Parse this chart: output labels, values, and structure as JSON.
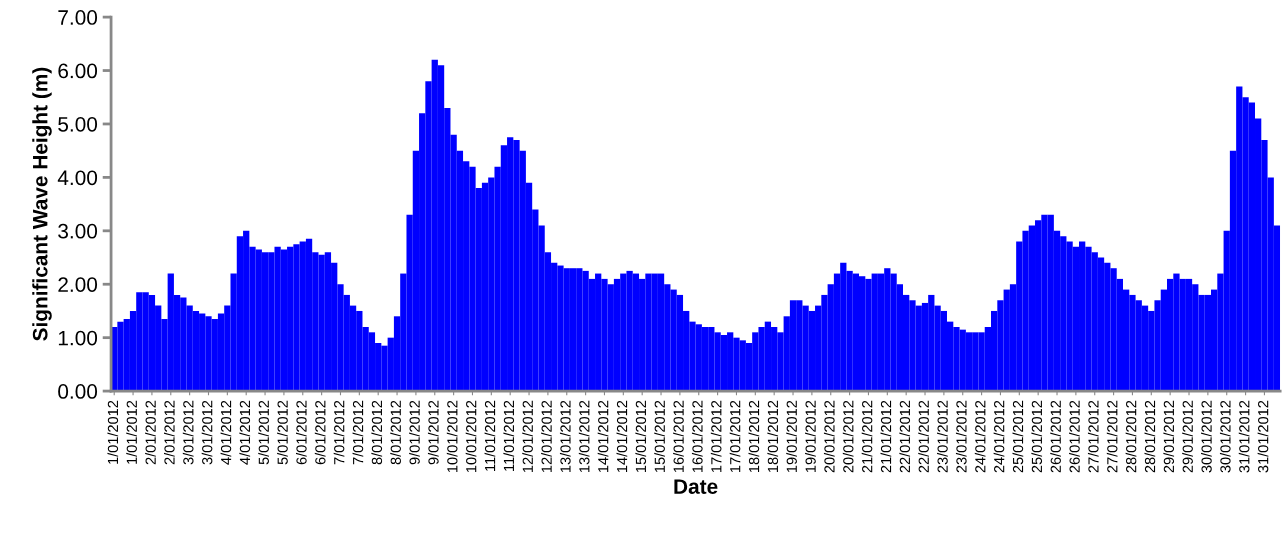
{
  "chart_data": {
    "type": "bar",
    "xlabel": "Date",
    "ylabel": "Significant Wave Height (m)",
    "categories": [
      "1/01/2012",
      null,
      null,
      "1/01/2012",
      null,
      null,
      "2/01/2012",
      null,
      null,
      "2/01/2012",
      null,
      null,
      "3/01/2012",
      null,
      null,
      "3/01/2012",
      null,
      null,
      "4/01/2012",
      null,
      null,
      "4/01/2012",
      null,
      null,
      "5/01/2012",
      null,
      null,
      "5/01/2012",
      null,
      null,
      "6/01/2012",
      null,
      null,
      "6/01/2012",
      null,
      null,
      "7/01/2012",
      null,
      null,
      "7/01/2012",
      null,
      null,
      "8/01/2012",
      null,
      null,
      "8/01/2012",
      null,
      null,
      "9/01/2012",
      null,
      null,
      "9/01/2012",
      null,
      null,
      "10/01/2012",
      null,
      null,
      "10/01/2012",
      null,
      null,
      "11/01/2012",
      null,
      null,
      "11/01/2012",
      null,
      null,
      "12/01/2012",
      null,
      null,
      "12/01/2012",
      null,
      null,
      "13/01/2012",
      null,
      null,
      "13/01/2012",
      null,
      null,
      "14/01/2012",
      null,
      null,
      "14/01/2012",
      null,
      null,
      "15/01/2012",
      null,
      null,
      "15/01/2012",
      null,
      null,
      "16/01/2012",
      null,
      null,
      "16/01/2012",
      null,
      null,
      "17/01/2012",
      null,
      null,
      "17/01/2012",
      null,
      null,
      "18/01/2012",
      null,
      null,
      "18/01/2012",
      null,
      null,
      "19/01/2012",
      null,
      null,
      "19/01/2012",
      null,
      null,
      "20/01/2012",
      null,
      null,
      "20/01/2012",
      null,
      null,
      "21/01/2012",
      null,
      null,
      "21/01/2012",
      null,
      null,
      "22/01/2012",
      null,
      null,
      "22/01/2012",
      null,
      null,
      "23/01/2012",
      null,
      null,
      "23/01/2012",
      null,
      null,
      "24/01/2012",
      null,
      null,
      "24/01/2012",
      null,
      null,
      "25/01/2012",
      null,
      null,
      "25/01/2012",
      null,
      null,
      "26/01/2012",
      null,
      null,
      "26/01/2012",
      null,
      null,
      "27/01/2012",
      null,
      null,
      "27/01/2012",
      null,
      null,
      "28/01/2012",
      null,
      null,
      "28/01/2012",
      null,
      null,
      "29/01/2012",
      null,
      null,
      "29/01/2012",
      null,
      null,
      "30/01/2012",
      null,
      null,
      "30/01/2012",
      null,
      null,
      "31/01/2012",
      null,
      null,
      "31/01/2012",
      null,
      null
    ],
    "values": [
      1.2,
      1.3,
      1.35,
      1.5,
      1.85,
      1.85,
      1.8,
      1.6,
      1.35,
      2.2,
      1.8,
      1.75,
      1.6,
      1.5,
      1.45,
      1.4,
      1.35,
      1.45,
      1.6,
      2.2,
      2.9,
      3.0,
      2.7,
      2.65,
      2.6,
      2.6,
      2.7,
      2.65,
      2.7,
      2.75,
      2.8,
      2.85,
      2.6,
      2.55,
      2.6,
      2.4,
      2.0,
      1.8,
      1.6,
      1.5,
      1.2,
      1.1,
      0.9,
      0.85,
      1.0,
      1.4,
      2.2,
      3.3,
      4.5,
      5.2,
      5.8,
      6.2,
      6.1,
      5.3,
      4.8,
      4.5,
      4.3,
      4.2,
      3.8,
      3.9,
      4.0,
      4.2,
      4.6,
      4.75,
      4.7,
      4.5,
      3.9,
      3.4,
      3.1,
      2.6,
      2.4,
      2.35,
      2.3,
      2.3,
      2.3,
      2.25,
      2.1,
      2.2,
      2.1,
      2.0,
      2.1,
      2.2,
      2.25,
      2.2,
      2.1,
      2.2,
      2.2,
      2.2,
      2.0,
      1.9,
      1.8,
      1.5,
      1.3,
      1.25,
      1.2,
      1.2,
      1.1,
      1.05,
      1.1,
      1.0,
      0.95,
      0.9,
      1.1,
      1.2,
      1.3,
      1.2,
      1.1,
      1.4,
      1.7,
      1.7,
      1.6,
      1.5,
      1.6,
      1.8,
      2.0,
      2.2,
      2.4,
      2.25,
      2.2,
      2.15,
      2.1,
      2.2,
      2.2,
      2.3,
      2.2,
      2.0,
      1.8,
      1.7,
      1.6,
      1.65,
      1.8,
      1.6,
      1.5,
      1.3,
      1.2,
      1.15,
      1.1,
      1.1,
      1.1,
      1.2,
      1.5,
      1.7,
      1.9,
      2.0,
      2.8,
      3.0,
      3.1,
      3.2,
      3.3,
      3.3,
      3.0,
      2.9,
      2.8,
      2.7,
      2.8,
      2.7,
      2.6,
      2.5,
      2.4,
      2.3,
      2.1,
      1.9,
      1.8,
      1.7,
      1.6,
      1.5,
      1.7,
      1.9,
      2.1,
      2.2,
      2.1,
      2.1,
      2.0,
      1.8,
      1.8,
      1.9,
      2.2,
      3.0,
      4.5,
      5.7,
      5.5,
      5.4,
      5.1,
      4.7,
      4.0,
      3.1
    ],
    "color": "#0000ff",
    "ylim": [
      0,
      7
    ],
    "yticks": [
      {
        "value": 0,
        "label": "0.00"
      },
      {
        "value": 1,
        "label": "1.00"
      },
      {
        "value": 2,
        "label": "2.00"
      },
      {
        "value": 3,
        "label": "3.00"
      },
      {
        "value": 4,
        "label": "4.00"
      },
      {
        "value": 5,
        "label": "5.00"
      },
      {
        "value": 6,
        "label": "6.00"
      },
      {
        "value": 7,
        "label": "7.00"
      }
    ],
    "grid": false,
    "legend": false
  }
}
